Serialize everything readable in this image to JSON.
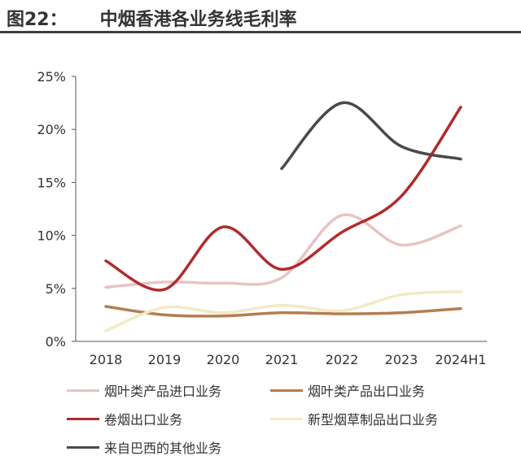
{
  "figure": {
    "label": "图22：",
    "title": "中烟香港各业务线毛利率"
  },
  "chart_data": {
    "type": "line",
    "categories": [
      "2018",
      "2019",
      "2020",
      "2021",
      "2022",
      "2023",
      "2024H1"
    ],
    "y_ticks": [
      "0%",
      "5%",
      "10%",
      "15%",
      "20%",
      "25%"
    ],
    "ylim": [
      0,
      25
    ],
    "grid": false,
    "legend_position": "bottom",
    "series": [
      {
        "name": "烟叶类产品进口业务",
        "color": "#e8c3c3",
        "values": [
          5.1,
          5.6,
          5.5,
          6.0,
          11.9,
          9.1,
          10.9
        ]
      },
      {
        "name": "烟叶类产品出口业务",
        "color": "#b57d50",
        "values": [
          3.3,
          2.5,
          2.4,
          2.7,
          2.6,
          2.7,
          3.1
        ]
      },
      {
        "name": "卷烟出口业务",
        "color": "#b22a2a",
        "values": [
          7.6,
          4.9,
          10.8,
          6.8,
          10.3,
          13.7,
          22.1
        ]
      },
      {
        "name": "新型烟草制品出口业务",
        "color": "#f0ebc4",
        "values": [
          1.0,
          3.2,
          2.7,
          3.4,
          2.9,
          4.4,
          4.7
        ]
      },
      {
        "name": "来自巴西的其他业务",
        "color": "#4a4a4a",
        "values": [
          null,
          null,
          null,
          16.3,
          22.5,
          18.4,
          17.2
        ]
      }
    ]
  }
}
